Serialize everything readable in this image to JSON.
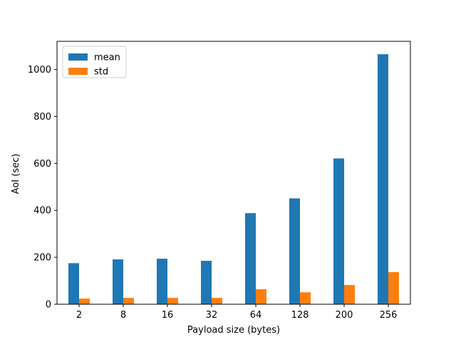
{
  "chart_data": {
    "type": "bar",
    "categories": [
      "2",
      "8",
      "16",
      "32",
      "64",
      "128",
      "200",
      "256"
    ],
    "series": [
      {
        "name": "mean",
        "color": "#1f77b4",
        "values": [
          175,
          191,
          194,
          185,
          388,
          451,
          621,
          1065
        ]
      },
      {
        "name": "std",
        "color": "#ff7f0e",
        "values": [
          24,
          27,
          27,
          27,
          64,
          51,
          82,
          137
        ]
      }
    ],
    "title": "",
    "xlabel": "Payload size (bytes)",
    "ylabel": "AoI (sec)",
    "ylim": [
      0,
      1120
    ],
    "yticks": [
      0,
      200,
      400,
      600,
      800,
      1000
    ],
    "grid": false,
    "legend": "top-left"
  }
}
